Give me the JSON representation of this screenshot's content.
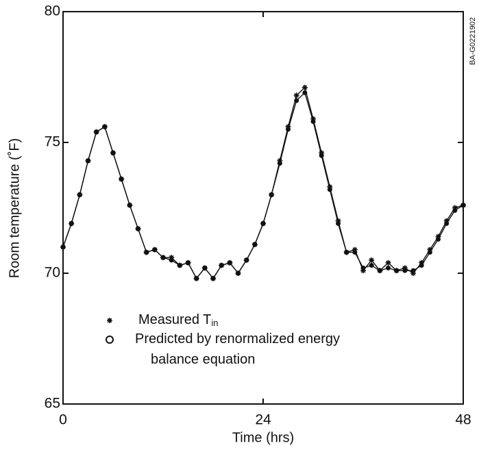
{
  "chart_data": {
    "type": "line",
    "xlabel": "Time (hrs)",
    "ylabel": "Room temperature (˚F)",
    "side_note": "BA-G0221902",
    "x": [
      0,
      1,
      2,
      3,
      4,
      5,
      6,
      7,
      8,
      9,
      10,
      11,
      12,
      13,
      14,
      15,
      16,
      17,
      18,
      19,
      20,
      21,
      22,
      23,
      24,
      25,
      26,
      27,
      28,
      29,
      30,
      31,
      32,
      33,
      34,
      35,
      36,
      37,
      38,
      39,
      40,
      41,
      42,
      43,
      44,
      45,
      46,
      47,
      48
    ],
    "series": [
      {
        "name": "Measured T",
        "name_subscript": "in",
        "marker": "asterisk",
        "color": "#111111",
        "values": [
          71.0,
          71.9,
          73.0,
          74.3,
          75.4,
          75.6,
          74.6,
          73.6,
          72.6,
          71.7,
          70.8,
          70.9,
          70.6,
          70.6,
          70.3,
          70.4,
          69.8,
          70.2,
          69.8,
          70.3,
          70.4,
          70.0,
          70.5,
          71.1,
          71.9,
          73.0,
          74.3,
          75.6,
          76.8,
          77.1,
          75.9,
          74.6,
          73.3,
          72.0,
          70.8,
          70.9,
          70.1,
          70.5,
          70.1,
          70.4,
          70.1,
          70.2,
          70.0,
          70.4,
          70.9,
          71.4,
          72.0,
          72.5,
          72.6
        ]
      },
      {
        "name": "Predicted by renormalized energy balance equation",
        "marker": "circle",
        "color": "#111111",
        "values": [
          71.0,
          71.9,
          73.0,
          74.3,
          75.4,
          75.6,
          74.6,
          73.6,
          72.6,
          71.7,
          70.8,
          70.9,
          70.6,
          70.5,
          70.3,
          70.4,
          69.8,
          70.2,
          69.8,
          70.3,
          70.4,
          70.0,
          70.5,
          71.1,
          71.9,
          73.0,
          74.2,
          75.5,
          76.6,
          76.9,
          75.8,
          74.5,
          73.2,
          71.9,
          70.8,
          70.8,
          70.2,
          70.3,
          70.1,
          70.2,
          70.1,
          70.1,
          70.1,
          70.3,
          70.8,
          71.3,
          71.9,
          72.4,
          72.6
        ]
      }
    ],
    "xlim": [
      0,
      48
    ],
    "xticks": [
      0,
      24,
      48
    ],
    "ylim": [
      65,
      80
    ],
    "yticks": [
      65,
      70,
      75,
      80
    ]
  }
}
